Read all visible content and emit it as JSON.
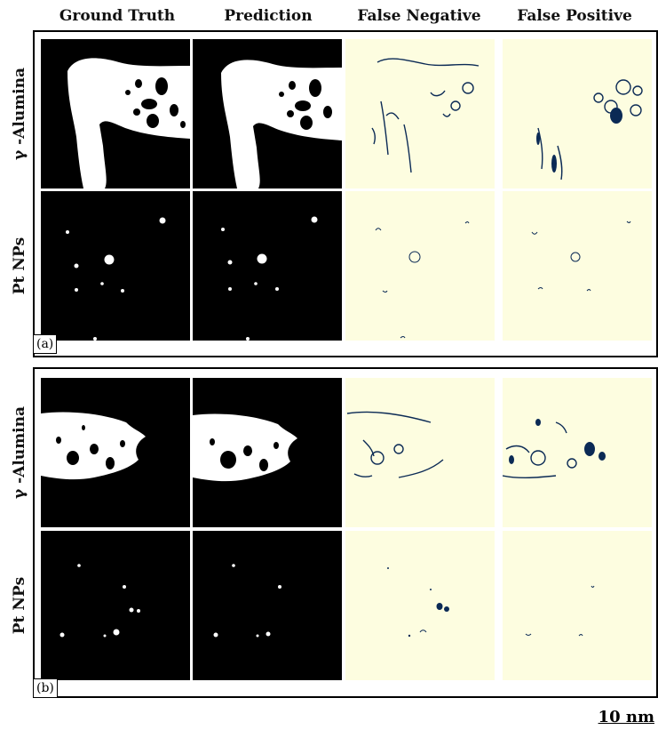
{
  "columns": [
    "Ground Truth",
    "Prediction",
    "False Negative",
    "False Positive"
  ],
  "rows": [
    "γ -Alumina",
    "Pt NPs"
  ],
  "panels": [
    "(a)",
    "(b)"
  ],
  "scale_bar": "10 nm",
  "colors": {
    "mask_bg": "#000000",
    "mask_fg": "#ffffff",
    "error_bg": "#fdfde0",
    "error_fg": "#0b2a55"
  }
}
